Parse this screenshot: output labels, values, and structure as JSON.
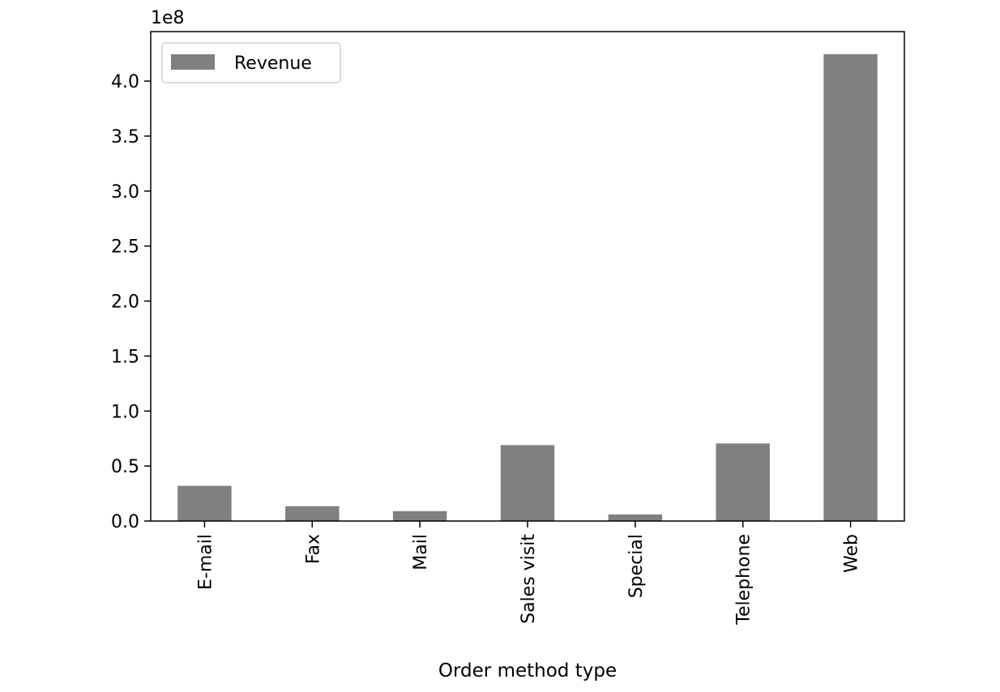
{
  "chart_data": {
    "type": "bar",
    "title": "",
    "xlabel": "Order method type",
    "ylabel": "",
    "axis_multiplier_label": "1e8",
    "categories": [
      "E-mail",
      "Fax",
      "Mail",
      "Sales visit",
      "Special",
      "Telephone",
      "Web"
    ],
    "series": [
      {
        "name": "Revenue",
        "values": [
          32000000,
          13500000,
          9000000,
          69000000,
          6000000,
          70500000,
          424500000
        ],
        "color": "#808080"
      }
    ],
    "ylim": [
      0,
      445000000
    ],
    "yticks": [
      0,
      50000000,
      100000000,
      150000000,
      200000000,
      250000000,
      300000000,
      350000000,
      400000000
    ],
    "ytick_labels": [
      "0.0",
      "0.5",
      "1.0",
      "1.5",
      "2.0",
      "2.5",
      "3.0",
      "3.5",
      "4.0"
    ],
    "legend_position": "top-left",
    "grid": false
  }
}
